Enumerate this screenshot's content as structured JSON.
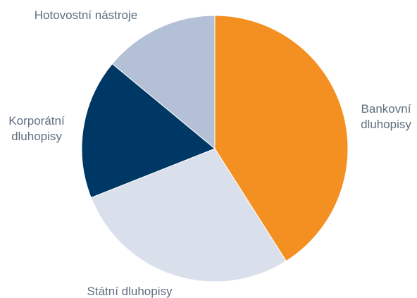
{
  "chart_data": {
    "type": "pie",
    "categories": [
      "Bankovní dluhopisy",
      "Státní dluhopisy",
      "Korporátní dluhopisy",
      "Hotovostní nástroje"
    ],
    "values": [
      41,
      28,
      17,
      14
    ],
    "label_lines": [
      [
        "Bankovní",
        "dluhopisy"
      ],
      [
        "Státní dluhopisy"
      ],
      [
        "Korporátní",
        "dluhopisy"
      ],
      [
        "Hotovostní nástroje"
      ]
    ],
    "colors": [
      "#f39021",
      "#d9e0ec",
      "#003865",
      "#b3c0d6"
    ],
    "start_angle_deg": 0,
    "direction": "clockwise"
  }
}
